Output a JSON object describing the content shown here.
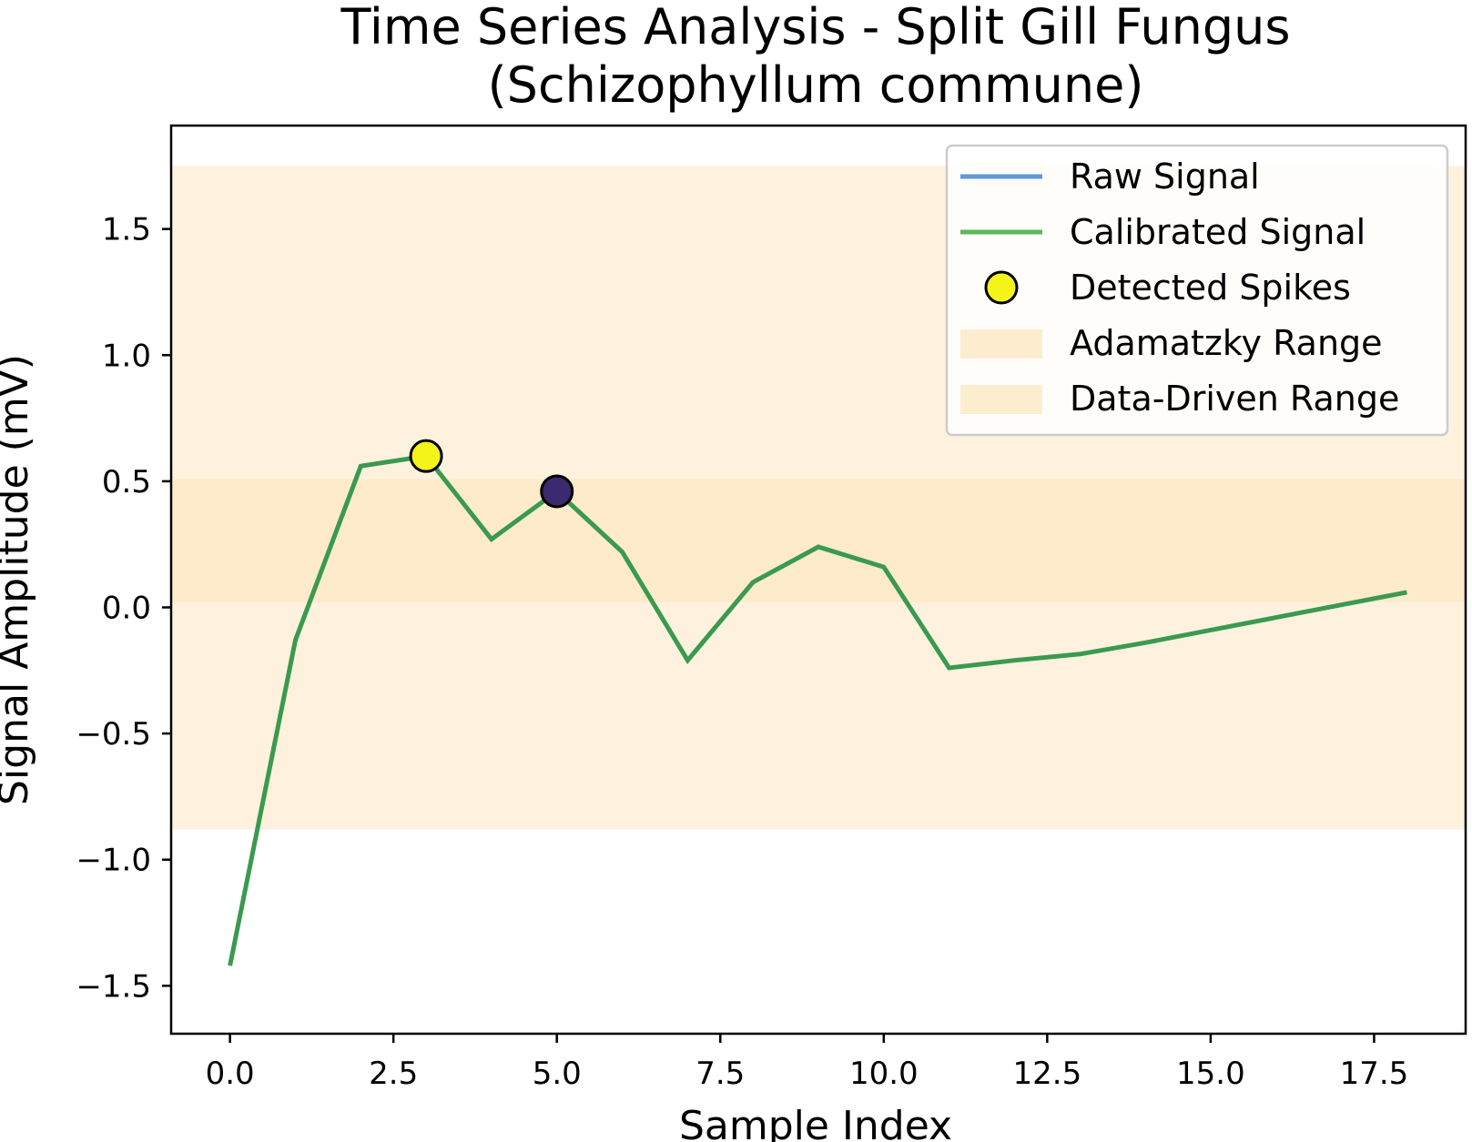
{
  "chart_data": {
    "type": "line",
    "title_line1": "Time Series Analysis - Split Gill Fungus",
    "title_line2": "(Schizophyllum commune)",
    "xlabel": "Sample Index",
    "ylabel": "Signal Amplitude (mV)",
    "xlim": [
      -0.9,
      18.9
    ],
    "ylim": [
      -1.69,
      1.91
    ],
    "x_ticks": [
      0.0,
      2.5,
      5.0,
      7.5,
      10.0,
      12.5,
      15.0,
      17.5
    ],
    "x_tick_labels": [
      "0.0",
      "2.5",
      "5.0",
      "7.5",
      "10.0",
      "12.5",
      "15.0",
      "17.5"
    ],
    "y_ticks": [
      -1.5,
      -1.0,
      -0.5,
      0.0,
      0.5,
      1.0,
      1.5
    ],
    "y_tick_labels": [
      "−1.5",
      "−1.0",
      "−0.5",
      "0.0",
      "0.5",
      "1.0",
      "1.5"
    ],
    "grid": false,
    "legend_position": "upper right",
    "bands": [
      {
        "name": "Adamatzky Range",
        "y_min": -0.88,
        "y_max": 1.75,
        "color": "#fde8c4",
        "opacity": 0.55
      },
      {
        "name": "Data-Driven Range",
        "y_min": 0.02,
        "y_max": 0.51,
        "color": "#fde8c4",
        "opacity": 0.75
      }
    ],
    "series": [
      {
        "name": "Raw Signal",
        "color": "#5b9bd5",
        "x": [
          0,
          1,
          2,
          3,
          4,
          5,
          6,
          7,
          8,
          9,
          10,
          11,
          12,
          13,
          14,
          15,
          16,
          17,
          18
        ],
        "y": [
          -1.42,
          -0.13,
          0.56,
          0.6,
          0.27,
          0.46,
          0.22,
          -0.21,
          0.1,
          0.24,
          0.16,
          -0.24,
          -0.21,
          -0.185,
          -0.14,
          -0.09,
          -0.04,
          0.01,
          0.06
        ]
      },
      {
        "name": "Calibrated Signal",
        "color": "#3a9a4f",
        "x": [
          0,
          1,
          2,
          3,
          4,
          5,
          6,
          7,
          8,
          9,
          10,
          11,
          12,
          13,
          14,
          15,
          16,
          17,
          18
        ],
        "y": [
          -1.42,
          -0.13,
          0.56,
          0.6,
          0.27,
          0.46,
          0.22,
          -0.21,
          0.1,
          0.24,
          0.16,
          -0.24,
          -0.21,
          -0.185,
          -0.14,
          -0.09,
          -0.04,
          0.01,
          0.06
        ]
      }
    ],
    "spikes": {
      "name": "Detected Spikes",
      "points": [
        {
          "x": 3,
          "y": 0.6,
          "color": "#f4f41a"
        },
        {
          "x": 5,
          "y": 0.46,
          "color": "#3b2a6e"
        }
      ]
    },
    "legend": [
      {
        "label": "Raw Signal",
        "kind": "line",
        "color": "#5b9bd5"
      },
      {
        "label": "Calibrated Signal",
        "kind": "line",
        "color": "#5cb85c"
      },
      {
        "label": "Detected Spikes",
        "kind": "marker",
        "color": "#f4f41a"
      },
      {
        "label": "Adamatzky Range",
        "kind": "patch",
        "color": "#fde8c4"
      },
      {
        "label": "Data-Driven Range",
        "kind": "patch",
        "color": "#fde8c4"
      }
    ]
  }
}
